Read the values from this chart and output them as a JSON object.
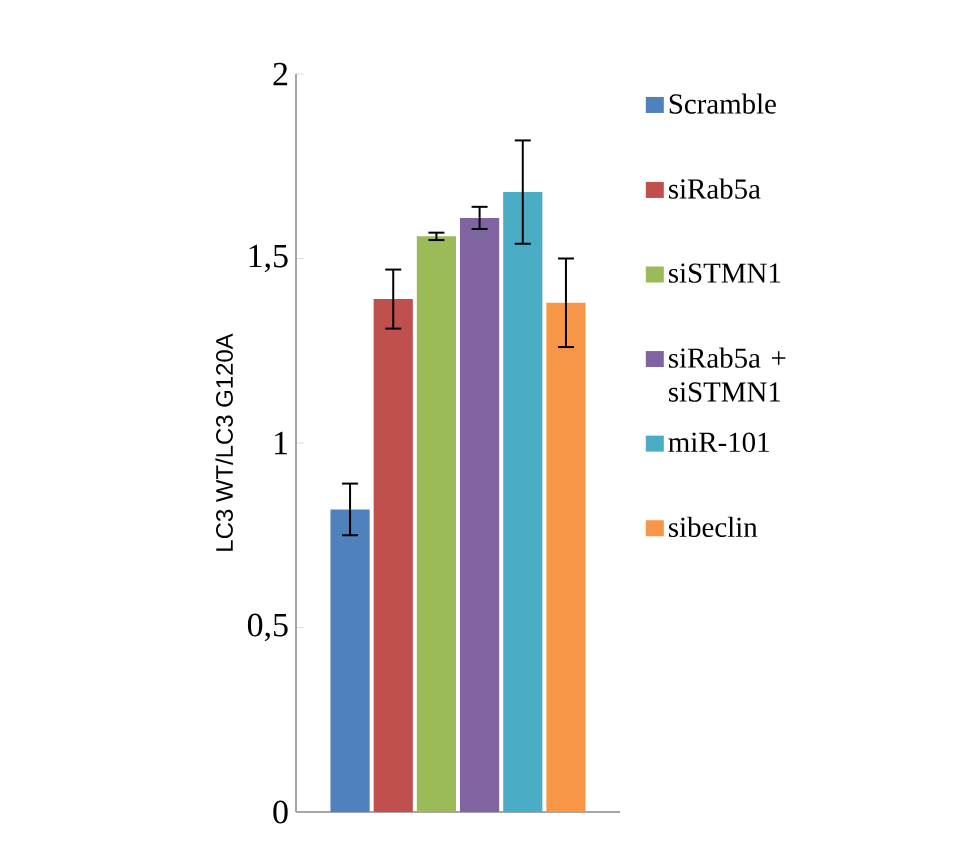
{
  "chart_data": {
    "type": "bar",
    "ylabel": "LC3 WT/LC3 G120A",
    "categories": [
      null
    ],
    "series": [
      {
        "name": "Scramble",
        "color": "#4f81bd",
        "values": [
          0.82
        ],
        "errors": [
          0.07
        ]
      },
      {
        "name": "siRab5a",
        "color": "#c0504d",
        "values": [
          1.39
        ],
        "errors": [
          0.08
        ]
      },
      {
        "name": "siSTMN1",
        "color": "#9bbb59",
        "values": [
          1.56
        ],
        "errors": [
          0.01
        ]
      },
      {
        "name": "siRab5a + siSTMN1",
        "color": "#8064a2",
        "values": [
          1.61
        ],
        "errors": [
          0.03
        ]
      },
      {
        "name": "miR-101",
        "color": "#4bacc6",
        "values": [
          1.68
        ],
        "errors": [
          0.14
        ]
      },
      {
        "name": "sibeclin",
        "color": "#f79646",
        "values": [
          1.38
        ],
        "errors": [
          0.12
        ]
      }
    ],
    "ylim": [
      0,
      2
    ],
    "yticks": [
      0,
      {
        "value": 0.5,
        "label": "0,5"
      },
      1,
      {
        "value": 1.5,
        "label": "1,5"
      },
      2
    ],
    "grid": false,
    "legend": "right"
  }
}
